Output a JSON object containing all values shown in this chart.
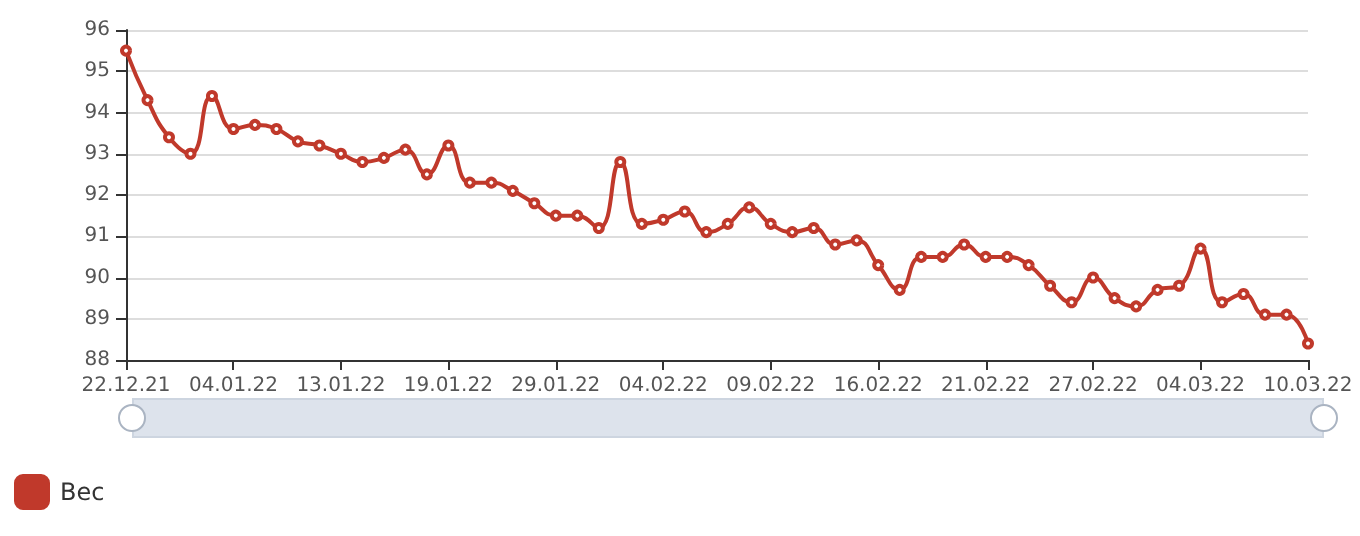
{
  "chart_data": {
    "type": "line",
    "categories": [
      "22.12.21",
      null,
      null,
      null,
      null,
      "04.01.22",
      null,
      null,
      null,
      null,
      "13.01.22",
      null,
      null,
      null,
      null,
      "19.01.22",
      null,
      null,
      null,
      null,
      "29.01.22",
      null,
      null,
      null,
      null,
      "04.02.22",
      null,
      null,
      null,
      null,
      "09.02.22",
      null,
      null,
      null,
      null,
      "16.02.22",
      null,
      null,
      null,
      null,
      "21.02.22",
      null,
      null,
      null,
      null,
      "27.02.22",
      null,
      null,
      null,
      null,
      "04.03.22",
      null,
      null,
      null,
      null,
      "10.03.22"
    ],
    "series": [
      {
        "name": "Вес",
        "color": "#c0392b",
        "values": [
          95.5,
          94.3,
          93.4,
          93.0,
          94.4,
          93.6,
          93.7,
          93.6,
          93.3,
          93.2,
          93.0,
          92.8,
          92.9,
          93.1,
          92.5,
          93.2,
          92.3,
          92.3,
          92.1,
          91.8,
          91.5,
          91.5,
          91.2,
          92.8,
          91.3,
          91.4,
          91.6,
          91.1,
          91.3,
          91.7,
          91.3,
          91.1,
          91.2,
          90.8,
          90.9,
          90.3,
          89.7,
          90.5,
          90.5,
          90.8,
          90.5,
          90.5,
          90.3,
          89.8,
          89.4,
          90.0,
          89.5,
          89.3,
          89.7,
          89.8,
          90.7,
          89.4,
          89.6,
          89.1,
          89.1,
          88.4
        ]
      }
    ],
    "ylim": [
      88,
      96
    ],
    "yticks": [
      88,
      89,
      90,
      91,
      92,
      93,
      94,
      95,
      96
    ],
    "grid": "y",
    "legend": "bottom left",
    "marker": "circle",
    "line_style": "solid"
  }
}
